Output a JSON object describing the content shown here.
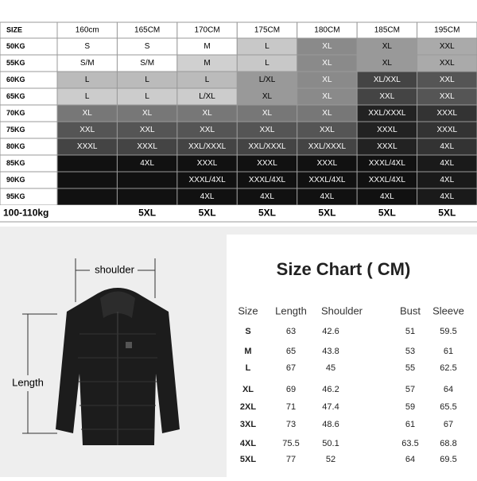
{
  "fit_table": {
    "header": [
      "SIZE",
      "160cm",
      "165CM",
      "170CM",
      "175CM",
      "180CM",
      "185CM",
      "195CM"
    ],
    "rows": [
      [
        "50KG",
        "S",
        "S",
        "M",
        "L",
        "XL",
        "XL",
        "XXL"
      ],
      [
        "55KG",
        "S/M",
        "S/M",
        "M",
        "L",
        "XL",
        "XL",
        "XXL"
      ],
      [
        "60KG",
        "L",
        "L",
        "L",
        "L/XL",
        "XL",
        "XL/XXL",
        "XXL"
      ],
      [
        "65KG",
        "L",
        "L",
        "L/XL",
        "XL",
        "XL",
        "XXL",
        "XXL"
      ],
      [
        "70KG",
        "XL",
        "XL",
        "XL",
        "XL",
        "XL",
        "XXL/XXXL",
        "XXXL"
      ],
      [
        "75KG",
        "XXL",
        "XXL",
        "XXL",
        "XXL",
        "XXL",
        "XXXL",
        "XXXL"
      ],
      [
        "80KG",
        "XXXL",
        "XXXL",
        "XXL/XXXL",
        "XXL/XXXL",
        "XXL/XXXL",
        "XXXL",
        "4XL"
      ],
      [
        "85KG",
        null,
        "4XL",
        "XXXL",
        "XXXL",
        "XXXL",
        "XXXL/4XL",
        "4XL"
      ],
      [
        "90KG",
        null,
        null,
        "XXXL/4XL",
        "XXXL/4XL",
        "XXXL/4XL",
        "XXXL/4XL",
        "4XL"
      ],
      [
        "95KG",
        null,
        null,
        "4XL",
        "4XL",
        "4XL",
        "4XL",
        "4XL"
      ],
      [
        "100-110kg",
        null,
        "5XL",
        "5XL",
        "5XL",
        "5XL",
        "5XL",
        "5XL"
      ]
    ]
  },
  "diagram": {
    "shoulder_label": "shoulder",
    "length_label": "Length"
  },
  "size_chart": {
    "title": "Size Chart ( CM)",
    "header": [
      "Size",
      "Length",
      "Shoulder",
      "Bust",
      "Sleeve"
    ],
    "rows": [
      [
        "S",
        63,
        42.6,
        51,
        59.5
      ],
      [
        "M",
        65,
        43.8,
        53,
        61
      ],
      [
        "L",
        67,
        45,
        55,
        62.5
      ],
      [
        "XL",
        69,
        46.2,
        57,
        64
      ],
      [
        "2XL",
        71,
        47.4,
        59,
        65.5
      ],
      [
        "3XL",
        73,
        48.6,
        61,
        67
      ],
      [
        "4XL",
        75.5,
        50.1,
        63.5,
        68.8
      ],
      [
        "5XL",
        77,
        52,
        64,
        69.5
      ]
    ]
  }
}
